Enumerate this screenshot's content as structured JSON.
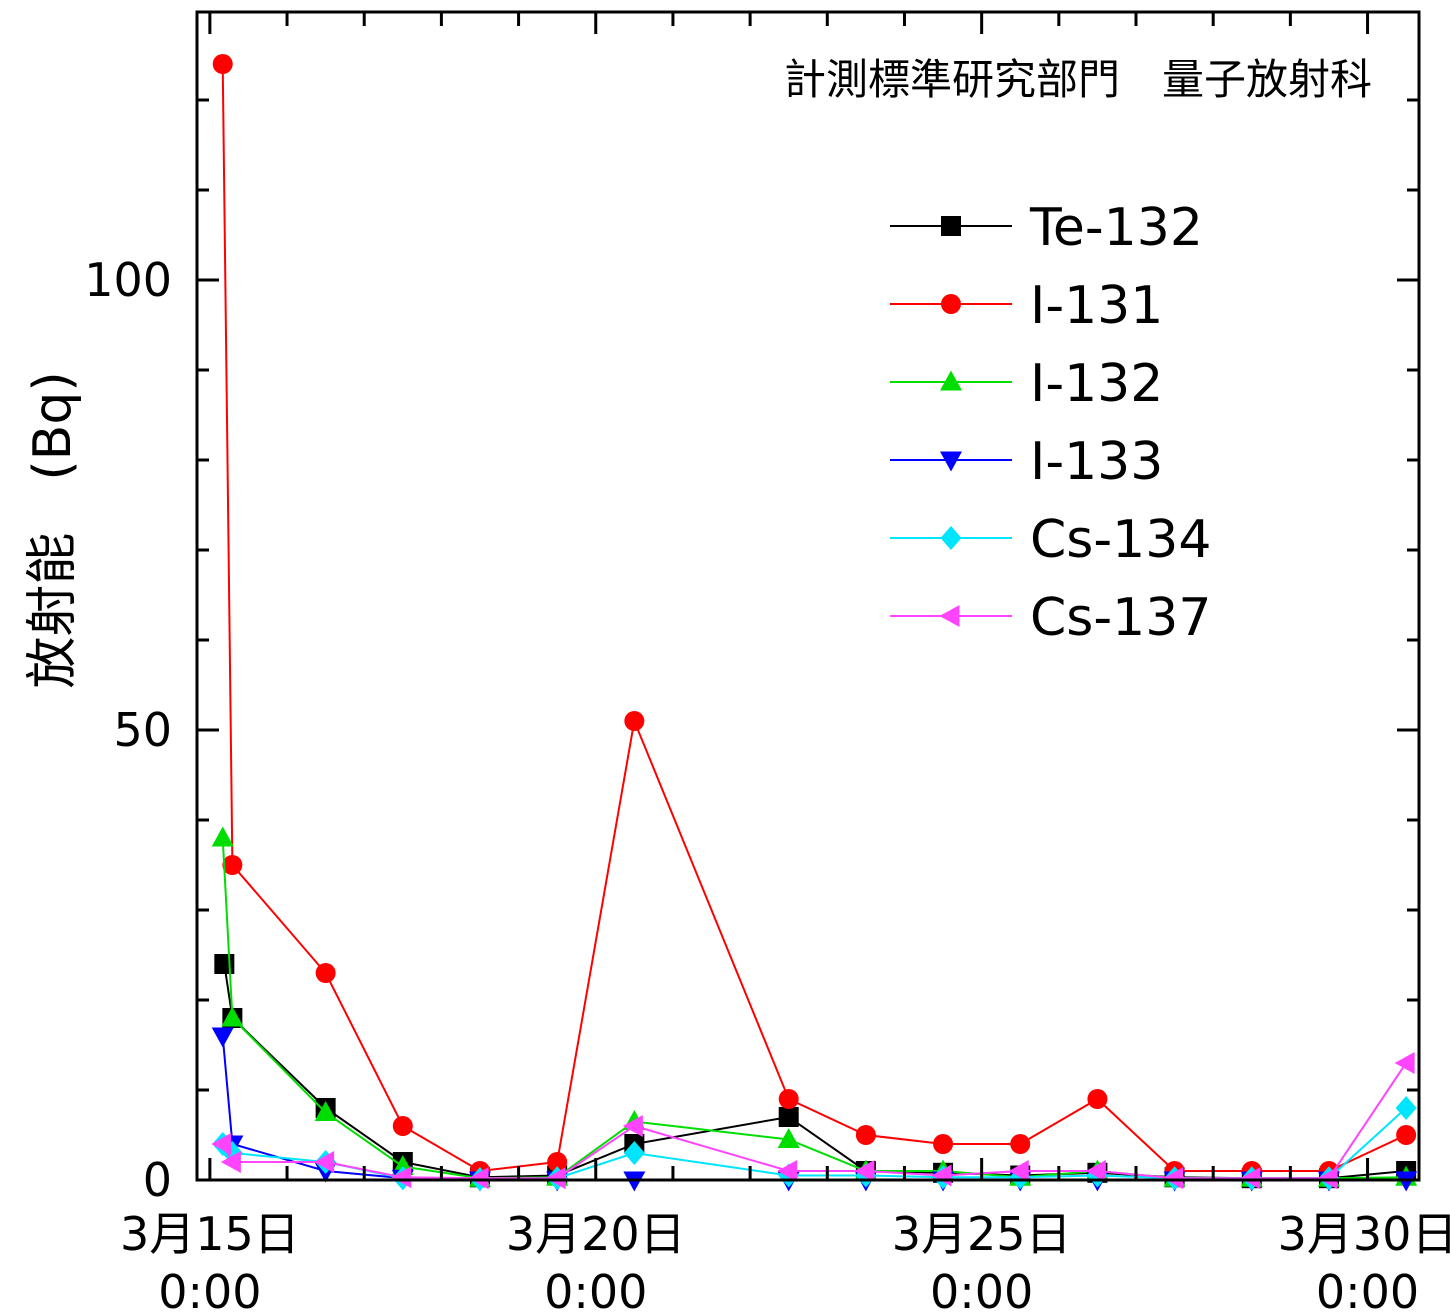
{
  "chart_data": {
    "type": "line",
    "annotation": "計測標準研究部門　量子放射科",
    "ylabel": "放射能　(Bq)",
    "xlabel": "",
    "ylim": [
      0,
      124
    ],
    "y_ticks": [
      0,
      50,
      100
    ],
    "x_range": [
      "2011-03-14T20:00",
      "2011-03-30T16:00"
    ],
    "x_ticks": [
      {
        "x": "2011-03-15T00:00",
        "line1": "3月15日",
        "line2": "0:00"
      },
      {
        "x": "2011-03-20T00:00",
        "line1": "3月20日",
        "line2": "0:00"
      },
      {
        "x": "2011-03-25T00:00",
        "line1": "3月25日",
        "line2": "0:00"
      },
      {
        "x": "2011-03-30T00:00",
        "line1": "3月30日",
        "line2": "0:00"
      }
    ],
    "legend_position": "top-right",
    "series": [
      {
        "name": "Te-132",
        "color": "#000000",
        "marker": "square",
        "points": [
          [
            "2011-03-15T04:30",
            24
          ],
          [
            "2011-03-15T07:00",
            18
          ],
          [
            "2011-03-16T12:00",
            8
          ],
          [
            "2011-03-17T12:00",
            2
          ],
          [
            "2011-03-18T12:00",
            0.3
          ],
          [
            "2011-03-19T12:00",
            0.5
          ],
          [
            "2011-03-20T12:00",
            4
          ],
          [
            "2011-03-22T12:00",
            7
          ],
          [
            "2011-03-23T12:00",
            1
          ],
          [
            "2011-03-24T12:00",
            0.8
          ],
          [
            "2011-03-25T12:00",
            0.5
          ],
          [
            "2011-03-26T12:00",
            0.8
          ],
          [
            "2011-03-27T12:00",
            0.3
          ],
          [
            "2011-03-28T12:00",
            0.2
          ],
          [
            "2011-03-29T12:00",
            0.2
          ],
          [
            "2011-03-30T12:00",
            1
          ]
        ]
      },
      {
        "name": "I-131",
        "color": "#ff0000",
        "marker": "circle",
        "points": [
          [
            "2011-03-15T04:00",
            124
          ],
          [
            "2011-03-15T07:00",
            35
          ],
          [
            "2011-03-16T12:00",
            23
          ],
          [
            "2011-03-17T12:00",
            6
          ],
          [
            "2011-03-18T12:00",
            1
          ],
          [
            "2011-03-19T12:00",
            2
          ],
          [
            "2011-03-20T12:00",
            51
          ],
          [
            "2011-03-22T12:00",
            9
          ],
          [
            "2011-03-23T12:00",
            5
          ],
          [
            "2011-03-24T12:00",
            4
          ],
          [
            "2011-03-25T12:00",
            4
          ],
          [
            "2011-03-26T12:00",
            9
          ],
          [
            "2011-03-27T12:00",
            1
          ],
          [
            "2011-03-28T12:00",
            1
          ],
          [
            "2011-03-29T12:00",
            1
          ],
          [
            "2011-03-30T12:00",
            5
          ]
        ]
      },
      {
        "name": "I-132",
        "color": "#00dd00",
        "marker": "triangle-up",
        "points": [
          [
            "2011-03-15T04:00",
            38
          ],
          [
            "2011-03-15T07:00",
            18
          ],
          [
            "2011-03-16T12:00",
            7.5
          ],
          [
            "2011-03-17T12:00",
            1.5
          ],
          [
            "2011-03-18T12:00",
            0.2
          ],
          [
            "2011-03-19T12:00",
            0.3
          ],
          [
            "2011-03-20T12:00",
            6.5
          ],
          [
            "2011-03-22T12:00",
            4.5
          ],
          [
            "2011-03-23T12:00",
            1
          ],
          [
            "2011-03-24T12:00",
            1
          ],
          [
            "2011-03-25T12:00",
            0.3
          ],
          [
            "2011-03-26T12:00",
            1
          ],
          [
            "2011-03-27T12:00",
            0.2
          ],
          [
            "2011-03-28T12:00",
            0.2
          ],
          [
            "2011-03-29T12:00",
            0.2
          ],
          [
            "2011-03-30T12:00",
            0.3
          ]
        ]
      },
      {
        "name": "I-133",
        "color": "#0000ff",
        "marker": "triangle-down",
        "points": [
          [
            "2011-03-15T04:00",
            16
          ],
          [
            "2011-03-15T07:00",
            4
          ],
          [
            "2011-03-16T12:00",
            1
          ],
          [
            "2011-03-17T12:00",
            0.2
          ],
          [
            "2011-03-18T12:00",
            0
          ],
          [
            "2011-03-19T12:00",
            0
          ],
          [
            "2011-03-20T12:00",
            0
          ],
          [
            "2011-03-22T12:00",
            0
          ],
          [
            "2011-03-23T12:00",
            0
          ],
          [
            "2011-03-24T12:00",
            0
          ],
          [
            "2011-03-25T12:00",
            0
          ],
          [
            "2011-03-26T12:00",
            0
          ],
          [
            "2011-03-27T12:00",
            0
          ],
          [
            "2011-03-28T12:00",
            0
          ],
          [
            "2011-03-29T12:00",
            0
          ],
          [
            "2011-03-30T12:00",
            0
          ]
        ]
      },
      {
        "name": "Cs-134",
        "color": "#00e5ff",
        "marker": "diamond",
        "points": [
          [
            "2011-03-15T04:00",
            4
          ],
          [
            "2011-03-15T07:00",
            3
          ],
          [
            "2011-03-16T12:00",
            2
          ],
          [
            "2011-03-17T12:00",
            0.2
          ],
          [
            "2011-03-18T12:00",
            0.1
          ],
          [
            "2011-03-19T12:00",
            0.2
          ],
          [
            "2011-03-20T12:00",
            3
          ],
          [
            "2011-03-22T12:00",
            0.5
          ],
          [
            "2011-03-23T12:00",
            0.5
          ],
          [
            "2011-03-24T12:00",
            0.3
          ],
          [
            "2011-03-25T12:00",
            0.3
          ],
          [
            "2011-03-26T12:00",
            0.5
          ],
          [
            "2011-03-27T12:00",
            0.2
          ],
          [
            "2011-03-28T12:00",
            0.2
          ],
          [
            "2011-03-29T12:00",
            0.2
          ],
          [
            "2011-03-30T12:00",
            8
          ]
        ]
      },
      {
        "name": "Cs-137",
        "color": "#ff44ff",
        "marker": "triangle-left",
        "points": [
          [
            "2011-03-15T04:00",
            4
          ],
          [
            "2011-03-15T07:00",
            2
          ],
          [
            "2011-03-16T12:00",
            2
          ],
          [
            "2011-03-17T12:00",
            0.3
          ],
          [
            "2011-03-18T12:00",
            0.2
          ],
          [
            "2011-03-19T12:00",
            0.2
          ],
          [
            "2011-03-20T12:00",
            6
          ],
          [
            "2011-03-22T12:00",
            1
          ],
          [
            "2011-03-23T12:00",
            1
          ],
          [
            "2011-03-24T12:00",
            0.5
          ],
          [
            "2011-03-25T12:00",
            1
          ],
          [
            "2011-03-26T12:00",
            1
          ],
          [
            "2011-03-27T12:00",
            0.2
          ],
          [
            "2011-03-28T12:00",
            0.2
          ],
          [
            "2011-03-29T12:00",
            0.2
          ],
          [
            "2011-03-30T12:00",
            13
          ]
        ]
      }
    ]
  }
}
